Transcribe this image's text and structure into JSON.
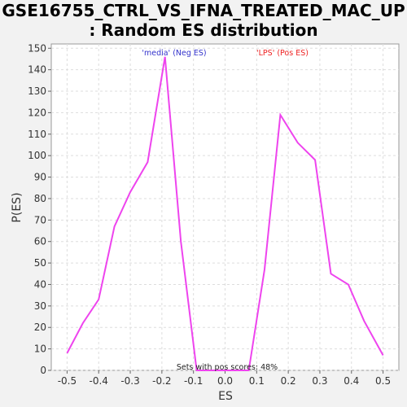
{
  "chart_data": {
    "type": "line",
    "title_line1": "GSE16755_CTRL_VS_IFNA_TREATED_MAC_UP",
    "title_line2": ": Random ES distribution",
    "xlabel": "ES",
    "ylabel": "P(ES)",
    "xlim": [
      -0.55,
      0.55
    ],
    "ylim": [
      0,
      152
    ],
    "xticks": [
      -0.5,
      -0.4,
      -0.3,
      -0.2,
      -0.1,
      0.0,
      0.1,
      0.2,
      0.3,
      0.4,
      0.5
    ],
    "xtick_labels": [
      "-0.5",
      "-0.4",
      "-0.3",
      "-0.2",
      "-0.1",
      "0.0",
      "0.1",
      "0.2",
      "0.3",
      "0.4",
      "0.5"
    ],
    "yticks": [
      0,
      10,
      20,
      30,
      40,
      50,
      60,
      70,
      80,
      90,
      100,
      110,
      120,
      130,
      140,
      150
    ],
    "ytick_labels": [
      "0",
      "10",
      "20",
      "30",
      "40",
      "50",
      "60",
      "70",
      "80",
      "90",
      "100",
      "110",
      "120",
      "130",
      "140",
      "150"
    ],
    "grid": true,
    "series": [
      {
        "color": "#ee44ee",
        "points": [
          [
            -0.5,
            8
          ],
          [
            -0.45,
            22
          ],
          [
            -0.4,
            33
          ],
          [
            -0.35,
            67
          ],
          [
            -0.3,
            83
          ],
          [
            -0.245,
            97
          ],
          [
            -0.19,
            146
          ],
          [
            -0.14,
            60
          ],
          [
            -0.09,
            0
          ],
          [
            0.0,
            0
          ],
          [
            0.075,
            0
          ],
          [
            0.125,
            47
          ],
          [
            0.175,
            119
          ],
          [
            0.23,
            106
          ],
          [
            0.285,
            98
          ],
          [
            0.335,
            45
          ],
          [
            0.39,
            40
          ],
          [
            0.44,
            23
          ],
          [
            0.5,
            7
          ]
        ]
      }
    ],
    "annotations": {
      "neg_label": "'media' (Neg ES)",
      "neg_color": "#3333cc",
      "pos_label": "'LPS' (Pos ES)",
      "pos_color": "#ee2222",
      "footer": "Sets with pos scores: 48%"
    }
  }
}
